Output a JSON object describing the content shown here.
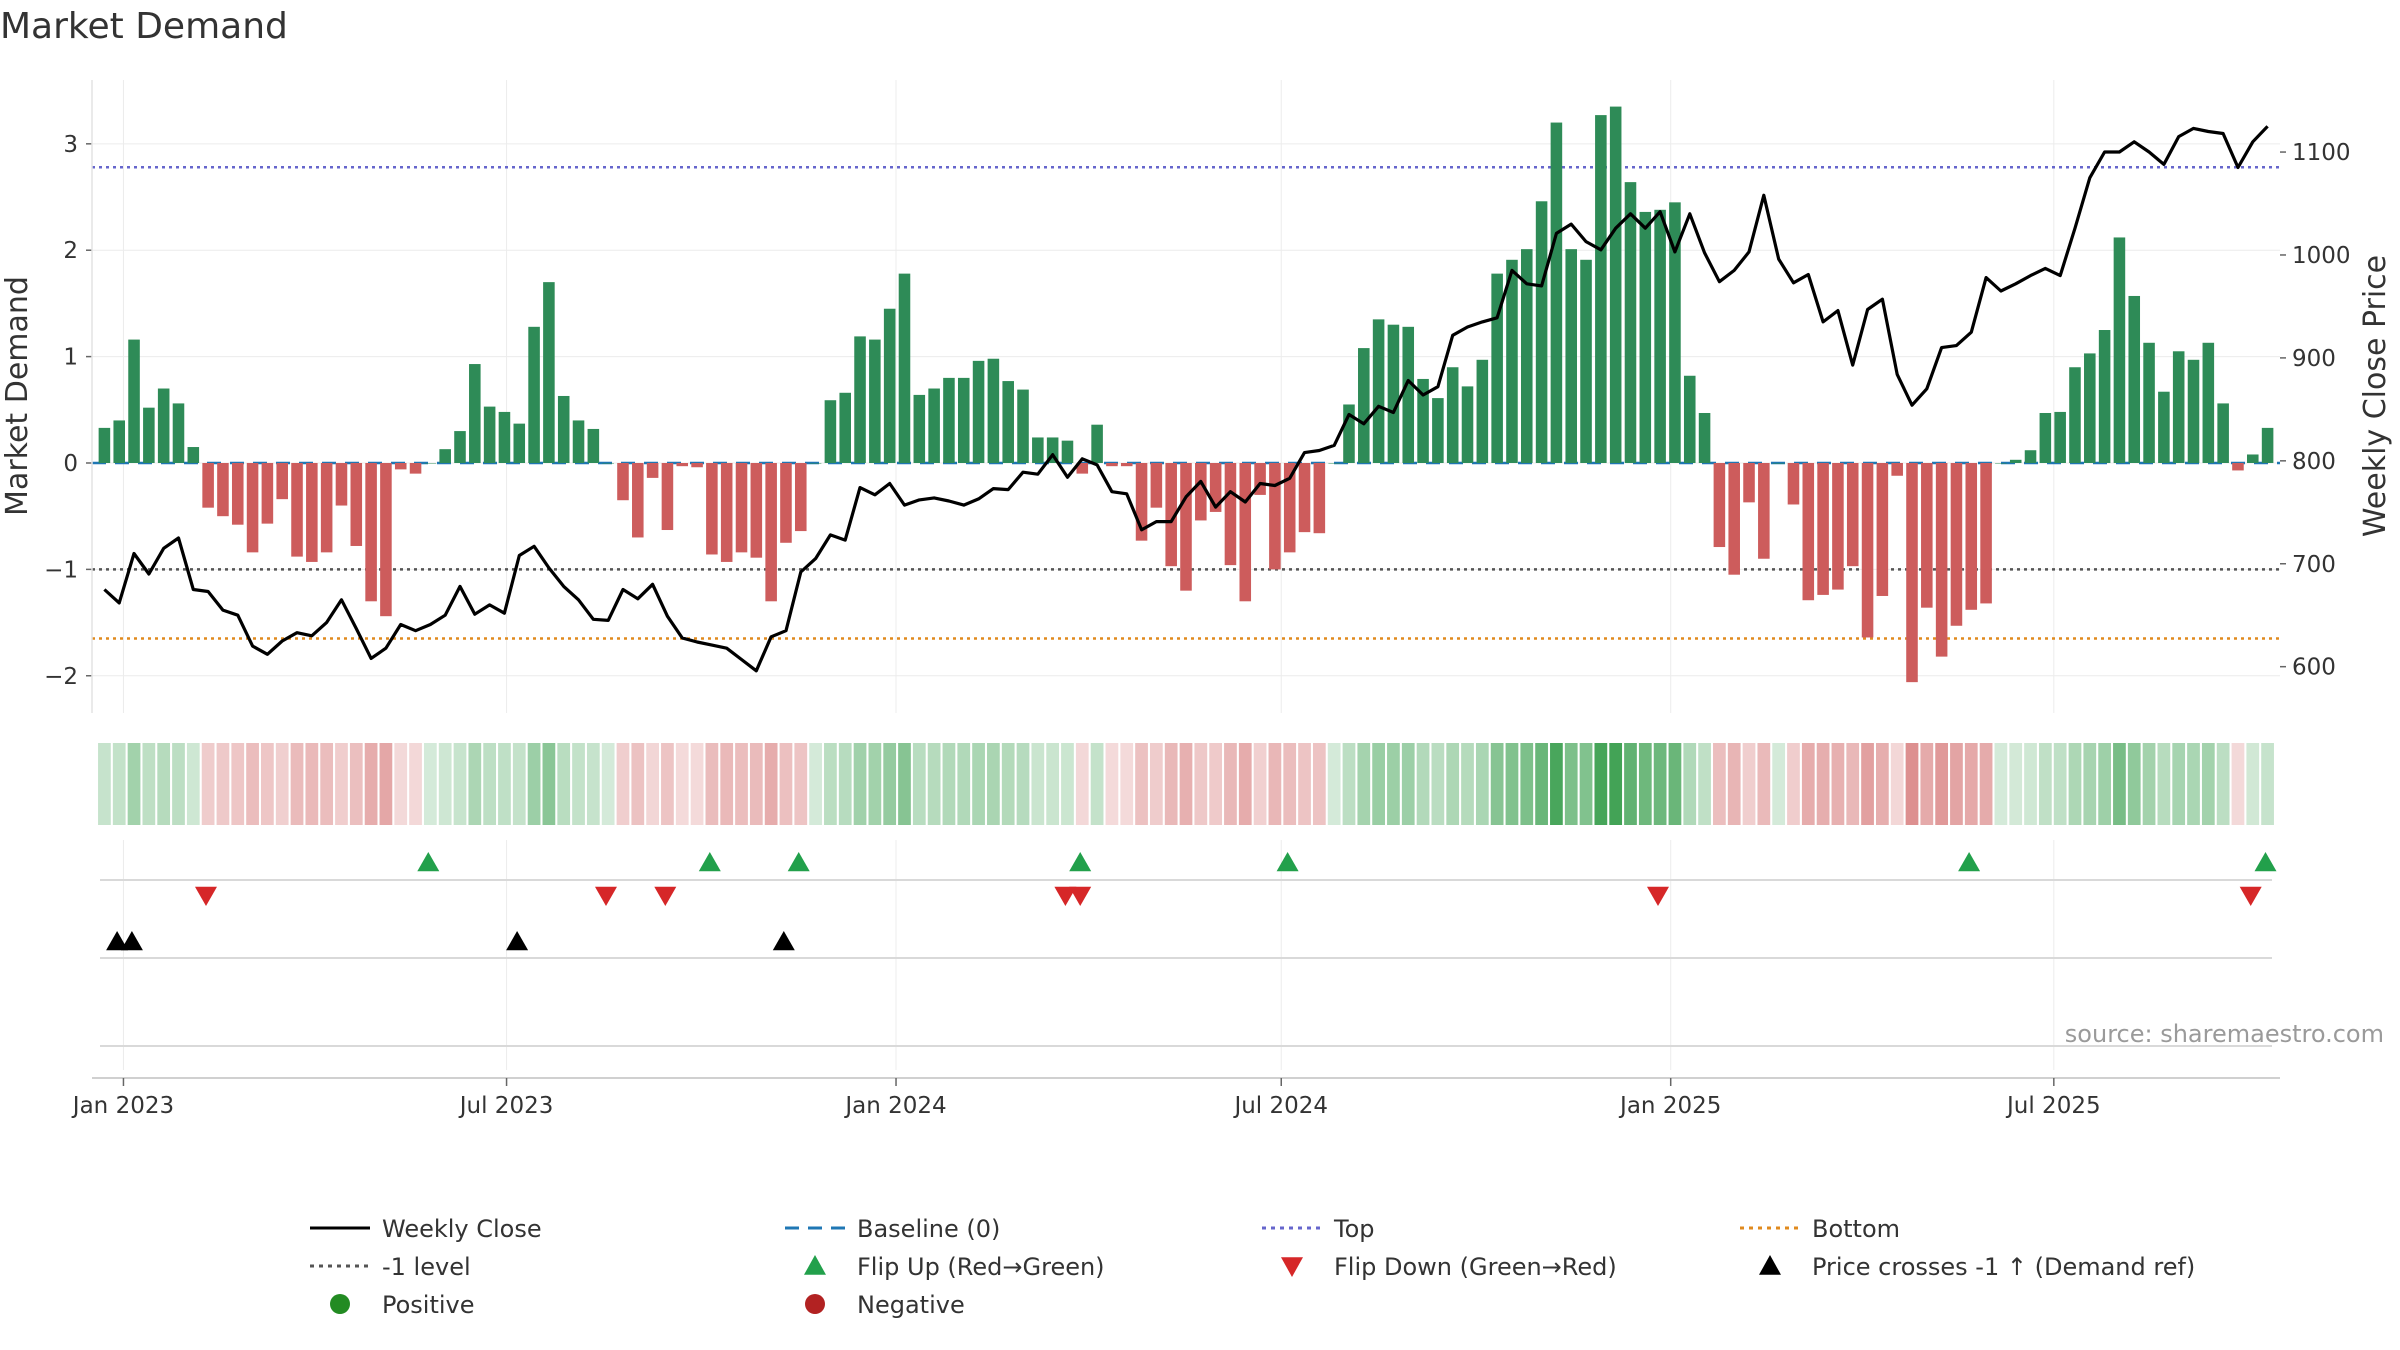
{
  "chart_data": {
    "type": "bar",
    "title": "Market Demand",
    "ylabel_left": "Market Demand",
    "ylabel_right": "Weekly Close Price",
    "ylim_left": [
      -2.35,
      3.6
    ],
    "ylim_right": [
      555,
      1170
    ],
    "yticks_left": [
      -2,
      -1,
      0,
      1,
      2,
      3
    ],
    "ytick_labels_left": [
      "−2",
      "−1",
      "0",
      "1",
      "2",
      "3"
    ],
    "yticks_right": [
      600,
      700,
      800,
      900,
      1000,
      1100
    ],
    "ytick_labels_right": [
      "600",
      "700",
      "800",
      "900",
      "1000",
      "1100"
    ],
    "x_start": "2022-12-23",
    "x_step_days": 7,
    "x_ticks": [
      {
        "label": "Jan 2023",
        "days": 9
      },
      {
        "label": "Jul 2023",
        "days": 190
      },
      {
        "label": "Jan 2024",
        "days": 374
      },
      {
        "label": "Jul 2024",
        "days": 556
      },
      {
        "label": "Jan 2025",
        "days": 740
      },
      {
        "label": "Jul 2025",
        "days": 921
      }
    ],
    "levels": {
      "baseline": 0,
      "top": 2.78,
      "minus_one": -1,
      "bottom": -1.65
    },
    "demand": [
      0.33,
      0.4,
      1.16,
      0.52,
      0.7,
      0.56,
      0.15,
      -0.42,
      -0.5,
      -0.58,
      -0.84,
      -0.57,
      -0.34,
      -0.88,
      -0.93,
      -0.84,
      -0.4,
      -0.78,
      -1.3,
      -1.44,
      -0.06,
      -0.1,
      0.0,
      0.13,
      0.3,
      0.93,
      0.53,
      0.48,
      0.37,
      1.28,
      1.7,
      0.63,
      0.4,
      0.32,
      0.0,
      -0.35,
      -0.7,
      -0.14,
      -0.63,
      -0.03,
      -0.04,
      -0.86,
      -0.93,
      -0.84,
      -0.89,
      -1.3,
      -0.75,
      -0.64,
      0.0,
      0.59,
      0.66,
      1.19,
      1.16,
      1.45,
      1.78,
      0.64,
      0.7,
      0.8,
      0.8,
      0.96,
      0.98,
      0.77,
      0.69,
      0.24,
      0.24,
      0.21,
      -0.1,
      0.36,
      -0.03,
      -0.03,
      -0.73,
      -0.42,
      -0.97,
      -1.2,
      -0.54,
      -0.46,
      -0.96,
      -1.3,
      -0.3,
      -1.0,
      -0.84,
      -0.65,
      -0.66,
      0.0,
      0.55,
      1.08,
      1.35,
      1.3,
      1.28,
      0.79,
      0.61,
      0.9,
      0.72,
      0.97,
      1.78,
      1.91,
      2.01,
      2.46,
      3.2,
      2.01,
      1.91,
      3.27,
      3.35,
      2.64,
      2.36,
      2.38,
      2.45,
      0.82,
      0.47,
      -0.79,
      -1.05,
      -0.37,
      -0.9,
      0.0,
      -0.39,
      -1.29,
      -1.24,
      -1.19,
      -0.97,
      -1.64,
      -1.25,
      -0.12,
      -2.06,
      -1.36,
      -1.82,
      -1.53,
      -1.38,
      -1.32,
      0.0,
      0.03,
      0.12,
      0.47,
      0.48,
      0.9,
      1.03,
      1.25,
      2.12,
      1.57,
      1.13,
      0.67,
      1.05,
      0.97,
      1.13,
      0.56,
      -0.07,
      0.08,
      0.33
    ],
    "close": [
      675,
      662,
      710,
      690,
      715,
      725,
      675,
      673,
      655,
      650,
      620,
      612,
      625,
      633,
      630,
      643,
      665,
      637,
      608,
      618,
      641,
      635,
      641,
      650,
      678,
      651,
      660,
      652,
      708,
      717,
      696,
      678,
      665,
      646,
      645,
      675,
      666,
      680,
      649,
      628,
      624,
      621,
      618,
      607,
      596,
      629,
      635,
      692,
      705,
      728,
      723,
      774,
      767,
      778,
      757,
      762,
      764,
      761,
      757,
      763,
      773,
      772,
      789,
      787,
      806,
      784,
      802,
      796,
      770,
      768,
      733,
      741,
      741,
      765,
      780,
      755,
      770,
      760,
      778,
      776,
      783,
      808,
      810,
      815,
      845,
      836,
      853,
      847,
      878,
      864,
      872,
      922,
      930,
      935,
      939,
      985,
      972,
      970,
      1021,
      1030,
      1013,
      1005,
      1026,
      1040,
      1026,
      1042,
      1003,
      1040,
      1002,
      974,
      985,
      1003,
      1058,
      996,
      973,
      981,
      935,
      946,
      893,
      947,
      957,
      884,
      854,
      870,
      910,
      912,
      925,
      978,
      965,
      972,
      980,
      987,
      980,
      1026,
      1075,
      1100,
      1100,
      1110,
      1100,
      1088,
      1115,
      1123,
      1120,
      1118,
      1085,
      1110,
      1125
    ],
    "flip_up": [
      [
        "2023-05-25"
      ],
      [
        "2023-10-05"
      ],
      [
        "2023-11-16"
      ],
      [
        "2024-03-28"
      ],
      [
        "2024-07-04"
      ],
      [
        "2025-05-22"
      ],
      [
        "2025-10-09"
      ]
    ],
    "flip_down": [
      [
        "2023-02-09"
      ],
      [
        "2023-08-17"
      ],
      [
        "2023-09-14"
      ],
      [
        "2024-03-21"
      ],
      [
        "2024-03-28"
      ],
      [
        "2024-12-26"
      ],
      [
        "2025-10-02"
      ]
    ],
    "price_cross": [
      [
        "2022-12-29"
      ],
      [
        "2023-01-05"
      ],
      [
        "2023-07-06"
      ],
      [
        "2023-11-09"
      ]
    ],
    "legend": [
      {
        "label": "Weekly Close",
        "kind": "line-solid",
        "color": "#000000"
      },
      {
        "label": "Baseline (0)",
        "kind": "line-dash",
        "color": "#1f77b4"
      },
      {
        "label": "Top",
        "kind": "line-dot",
        "color": "#6666cc"
      },
      {
        "label": "Bottom",
        "kind": "line-dot",
        "color": "#e08a1e"
      },
      {
        "label": "-1 level",
        "kind": "line-dot",
        "color": "#555555"
      },
      {
        "label": "Flip Up (Red→Green)",
        "kind": "tri-up",
        "color": "#22a04b"
      },
      {
        "label": "Flip Down (Green→Red)",
        "kind": "tri-down",
        "color": "#d62728"
      },
      {
        "label": "Price crosses -1 ↑ (Demand ref)",
        "kind": "tri-up",
        "color": "#000000"
      },
      {
        "label": "Positive",
        "kind": "dot",
        "color": "#228b22"
      },
      {
        "label": "Negative",
        "kind": "dot",
        "color": "#b22222"
      }
    ],
    "source": "source: sharemaestro.com",
    "colors": {
      "positive_bar": "#2e8b57",
      "negative_bar": "#cd5c5c",
      "close_line": "#000000",
      "baseline": "#1f77b4",
      "top": "#6666cc",
      "bottom": "#e08a1e",
      "minus_one": "#555555",
      "heat_positive_rgb": [
        60,
        160,
        80
      ],
      "heat_negative_rgb": [
        205,
        92,
        92
      ]
    }
  }
}
